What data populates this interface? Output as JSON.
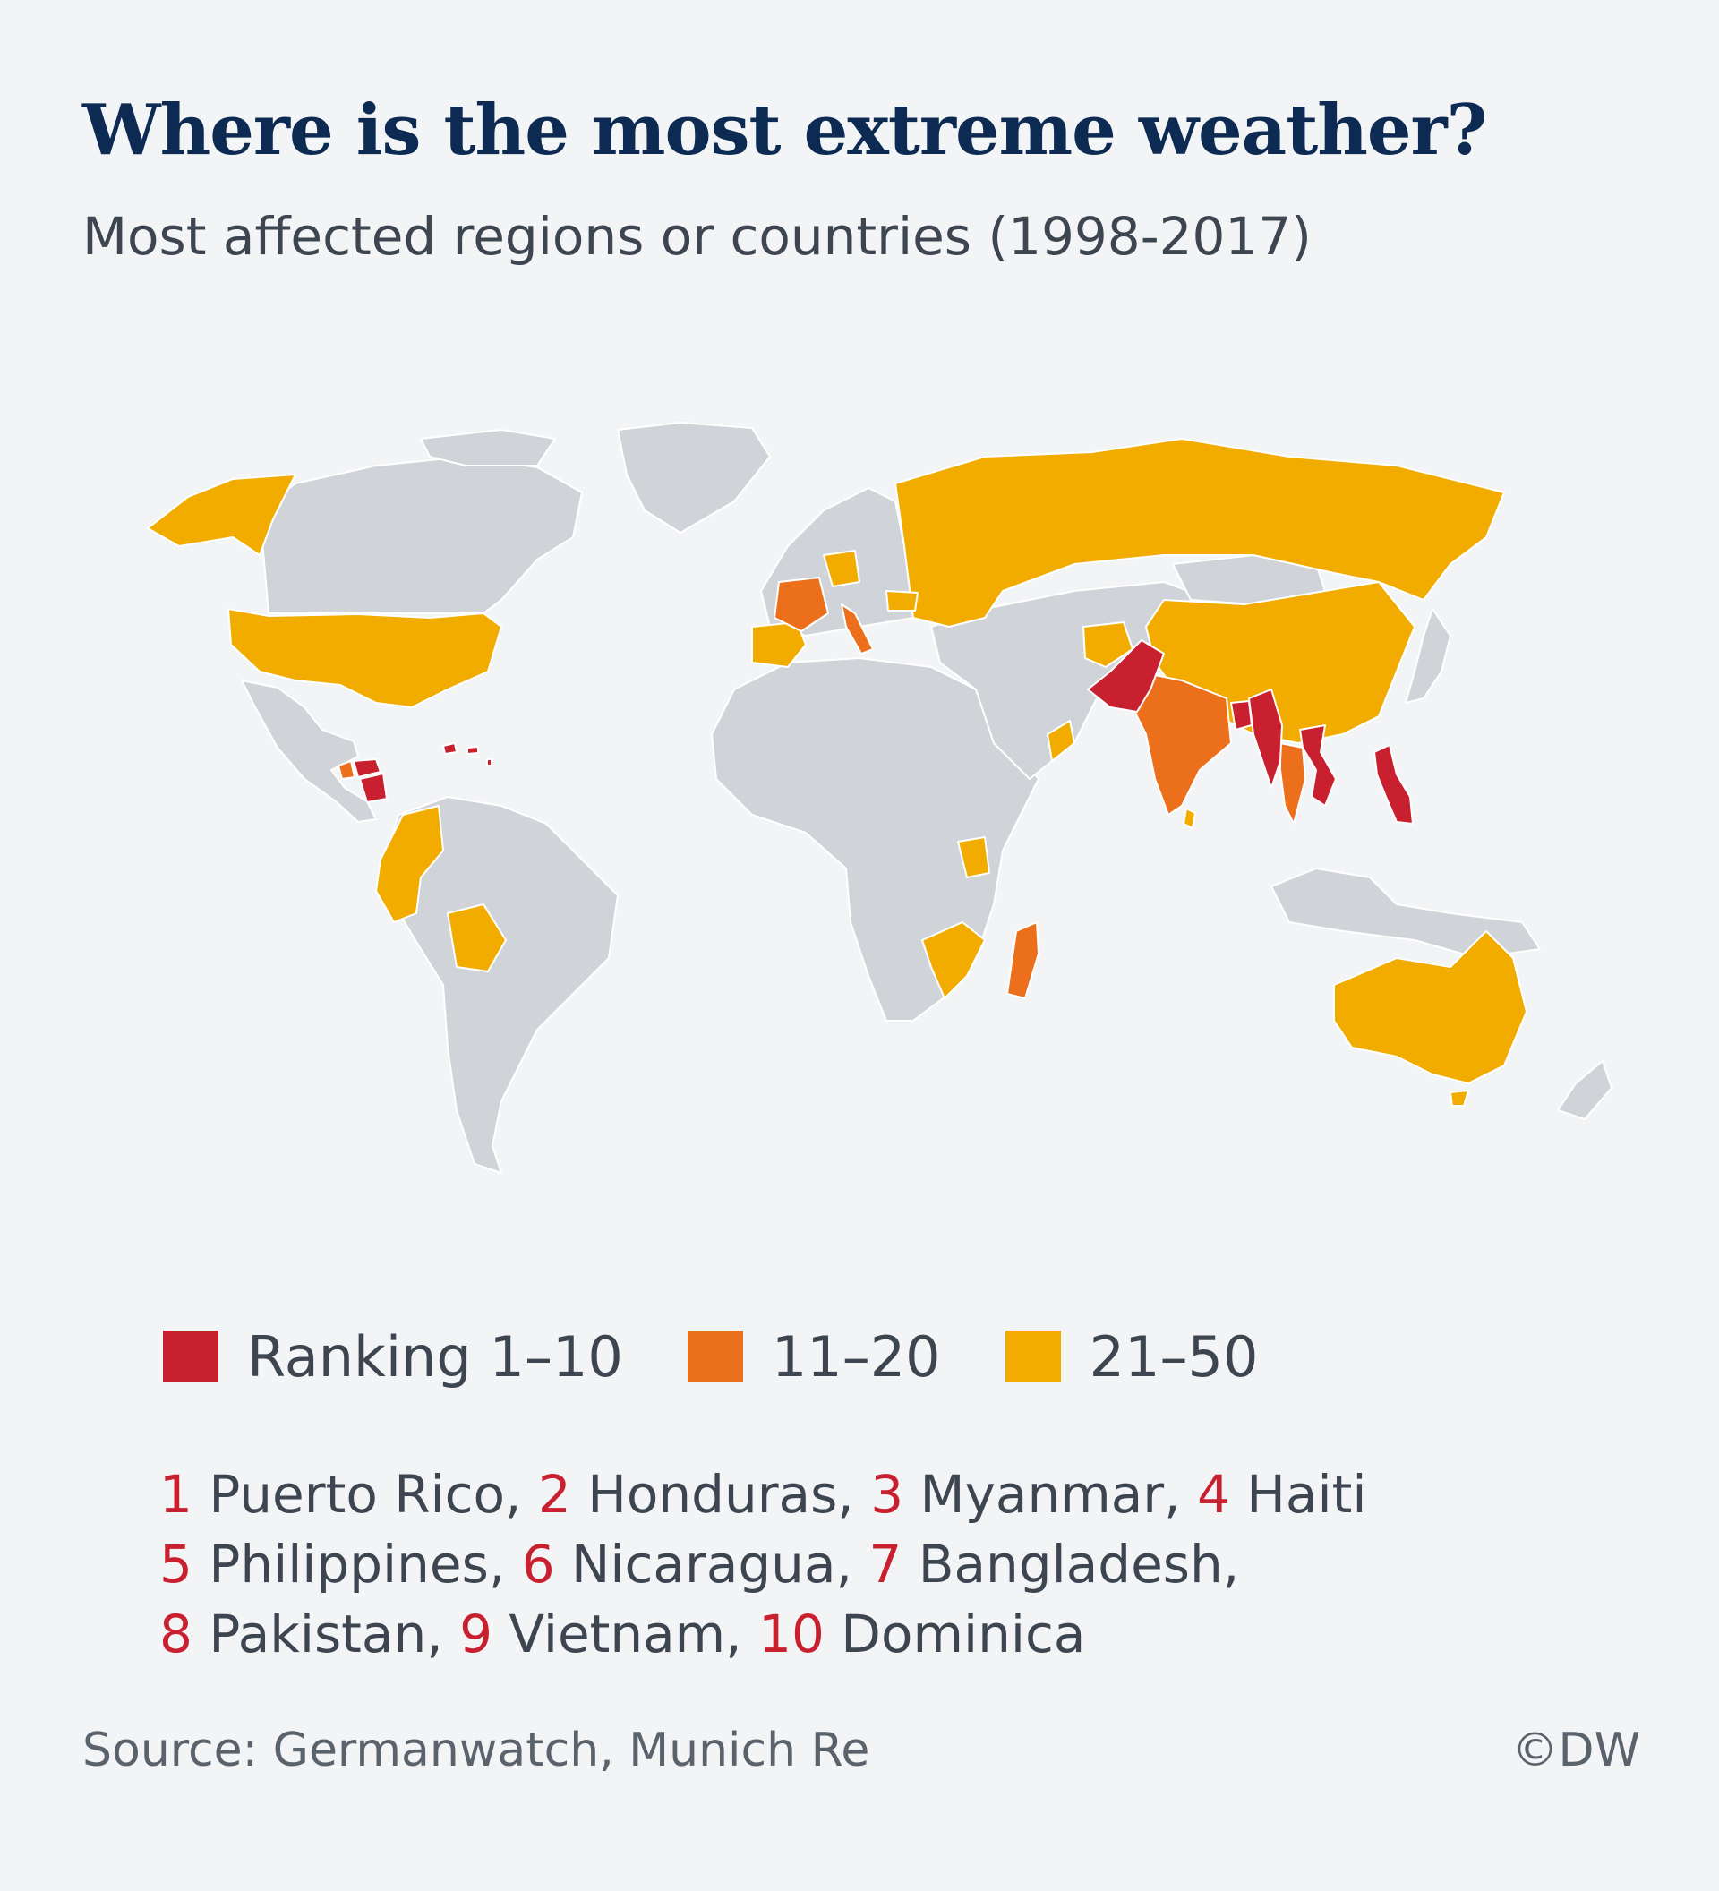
{
  "header": {
    "title": "Where is the most extreme weather?",
    "subtitle": "Most affected regions or countries (1998-2017)"
  },
  "colors": {
    "background": "#f3f4f6",
    "land": "#d0d4d9",
    "rank_1_10": "#c8202f",
    "rank_11_20": "#ec6f1c",
    "rank_21_50": "#f2ac00",
    "title": "#0c2a52",
    "text": "#3d4650"
  },
  "legend": {
    "items": [
      {
        "label": "Ranking 1–10",
        "color": "#c8202f"
      },
      {
        "label": "11–20",
        "color": "#ec6f1c"
      },
      {
        "label": "21–50",
        "color": "#f2ac00"
      }
    ]
  },
  "ranking": {
    "lines": [
      [
        {
          "num": "1",
          "text": " Puerto Rico, "
        },
        {
          "num": "2",
          "text": " Honduras, "
        },
        {
          "num": "3",
          "text": " Myanmar, "
        },
        {
          "num": "4",
          "text": " Haiti"
        }
      ],
      [
        {
          "num": "5",
          "text": " Philippines, "
        },
        {
          "num": "6",
          "text": " Nicaragua, "
        },
        {
          "num": "7",
          "text": " Bangladesh,"
        }
      ],
      [
        {
          "num": "8",
          "text": " Pakistan, "
        },
        {
          "num": "9",
          "text": " Vietnam, "
        },
        {
          "num": "10",
          "text": " Dominica"
        }
      ]
    ]
  },
  "footer": {
    "source": "Source: Germanwatch, Munich Re",
    "copyright": "©DW"
  }
}
